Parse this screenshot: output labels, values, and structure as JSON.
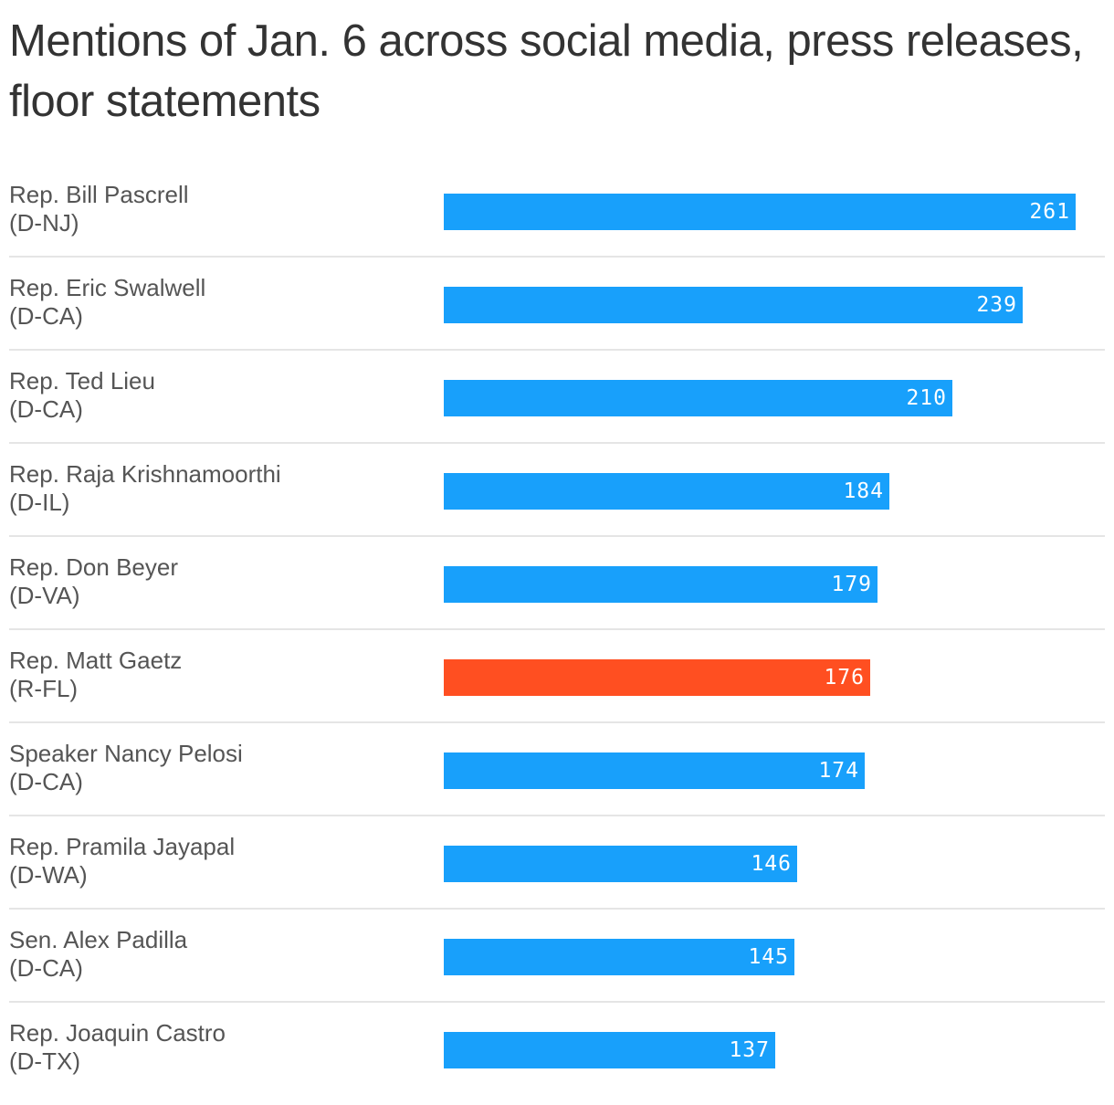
{
  "chart_data": {
    "type": "bar",
    "orientation": "horizontal",
    "title": "Mentions of Jan. 6 across social media, press releases, floor statements",
    "xlim": [
      0,
      261
    ],
    "grid": false,
    "legend": "none",
    "colors": {
      "default": "#18a0fb",
      "highlight": "#ff4f21"
    },
    "categories": [
      {
        "name": "Rep. Bill Pascrell",
        "party": "(D-NJ)"
      },
      {
        "name": "Rep. Eric Swalwell",
        "party": "(D-CA)"
      },
      {
        "name": "Rep. Ted Lieu",
        "party": "(D-CA)"
      },
      {
        "name": "Rep. Raja Krishnamoorthi",
        "party": "(D-IL)"
      },
      {
        "name": "Rep. Don Beyer",
        "party": "(D-VA)"
      },
      {
        "name": "Rep. Matt Gaetz",
        "party": "(R-FL)"
      },
      {
        "name": "Speaker Nancy Pelosi",
        "party": "(D-CA)"
      },
      {
        "name": "Rep. Pramila Jayapal",
        "party": "(D-WA)"
      },
      {
        "name": "Sen. Alex Padilla",
        "party": "(D-CA)"
      },
      {
        "name": "Rep. Joaquin Castro",
        "party": "(D-TX)"
      }
    ],
    "values": [
      261,
      239,
      210,
      184,
      179,
      176,
      174,
      146,
      145,
      137
    ],
    "highlighted": [
      false,
      false,
      false,
      false,
      false,
      true,
      false,
      false,
      false,
      false
    ]
  }
}
